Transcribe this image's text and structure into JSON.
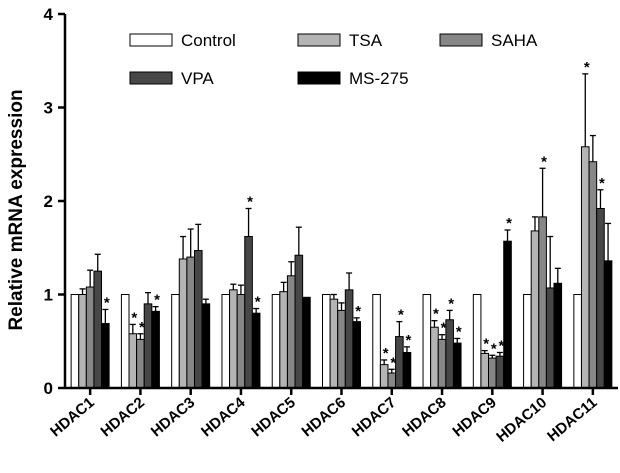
{
  "chart_data": {
    "type": "bar",
    "title": "",
    "xlabel": "",
    "ylabel": "Relative mRNA  expression",
    "ylim": [
      0,
      4
    ],
    "yticks": [
      "0",
      "1",
      "2",
      "3",
      "4"
    ],
    "categories": [
      "HDAC1",
      "HDAC2",
      "HDAC3",
      "HDAC4",
      "HDAC5",
      "HDAC6",
      "HDAC7",
      "HDAC8",
      "HDAC9",
      "HDAC10",
      "HDAC11"
    ],
    "legend_position": "top",
    "series": [
      {
        "name": "Control",
        "color": "#ffffff",
        "values": [
          1.0,
          1.0,
          1.0,
          1.0,
          1.0,
          1.0,
          1.0,
          1.0,
          1.0,
          1.0,
          1.0
        ],
        "errors": [
          0,
          0,
          0,
          0,
          0,
          0,
          0,
          0,
          0,
          0,
          0
        ],
        "significant": [
          false,
          false,
          false,
          false,
          false,
          false,
          false,
          false,
          false,
          false,
          false
        ]
      },
      {
        "name": "TSA",
        "color": "#b4b4b4",
        "values": [
          1.0,
          0.58,
          1.38,
          1.05,
          1.03,
          0.95,
          0.25,
          0.65,
          0.37,
          1.68,
          2.58
        ],
        "errors": [
          0.06,
          0.1,
          0.24,
          0.06,
          0.1,
          0.05,
          0.05,
          0.07,
          0.03,
          0.15,
          0.78
        ],
        "significant": [
          false,
          true,
          false,
          false,
          false,
          false,
          true,
          true,
          true,
          false,
          true
        ]
      },
      {
        "name": "SAHA",
        "color": "#878787",
        "values": [
          1.08,
          0.52,
          1.4,
          1.0,
          1.2,
          0.83,
          0.16,
          0.52,
          0.32,
          1.83,
          2.42
        ],
        "errors": [
          0.18,
          0.06,
          0.3,
          0.1,
          0.15,
          0.08,
          0.04,
          0.05,
          0.03,
          0.52,
          0.28
        ],
        "significant": [
          false,
          true,
          false,
          false,
          false,
          false,
          true,
          true,
          true,
          true,
          false
        ]
      },
      {
        "name": "VPA",
        "color": "#474747",
        "values": [
          1.25,
          0.9,
          1.47,
          1.62,
          1.42,
          1.05,
          0.55,
          0.73,
          0.34,
          1.07,
          1.92
        ],
        "errors": [
          0.18,
          0.12,
          0.28,
          0.3,
          0.3,
          0.18,
          0.16,
          0.1,
          0.04,
          0.55,
          0.2
        ],
        "significant": [
          false,
          false,
          false,
          true,
          false,
          false,
          true,
          true,
          true,
          false,
          true
        ]
      },
      {
        "name": "MS-275",
        "color": "#000000",
        "values": [
          0.69,
          0.82,
          0.9,
          0.8,
          0.97,
          0.71,
          0.38,
          0.48,
          1.57,
          1.12,
          1.36
        ],
        "errors": [
          0.15,
          0.05,
          0.05,
          0.05,
          0,
          0.04,
          0.06,
          0.05,
          0.12,
          0.16,
          0.4
        ],
        "significant": [
          true,
          true,
          false,
          true,
          false,
          true,
          true,
          true,
          true,
          false,
          false
        ]
      }
    ],
    "annotations": {
      "significance_mark": "*"
    }
  }
}
